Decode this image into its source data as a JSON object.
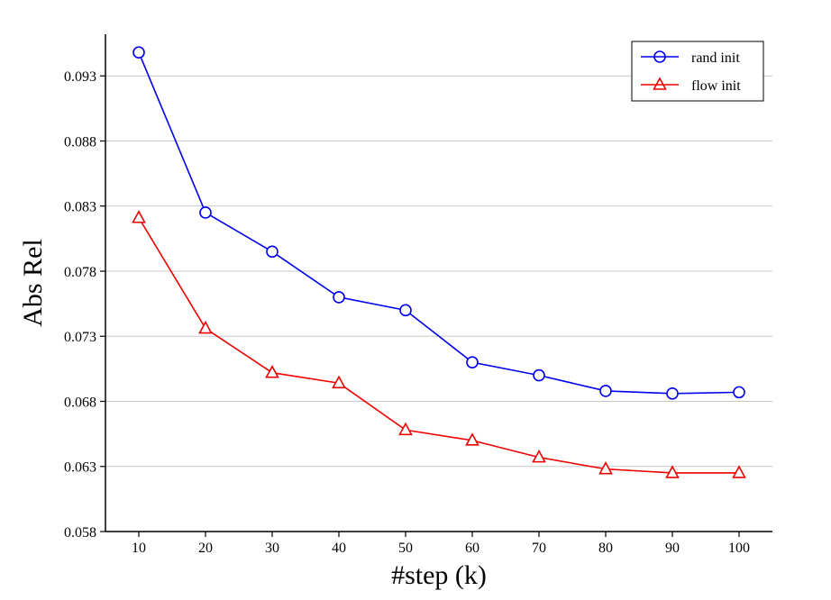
{
  "chart_data": {
    "type": "line",
    "title": "",
    "xlabel": "#step (k)",
    "ylabel": "Abs Rel",
    "x": [
      10,
      20,
      30,
      40,
      50,
      60,
      70,
      80,
      90,
      100
    ],
    "x_tick_labels": [
      "10",
      "20",
      "30",
      "40",
      "50",
      "60",
      "70",
      "80",
      "90",
      "100"
    ],
    "xlim": [
      5,
      105
    ],
    "ylim": [
      0.058,
      0.0962
    ],
    "y_ticks": [
      0.058,
      0.063,
      0.068,
      0.073,
      0.078,
      0.083,
      0.088,
      0.093
    ],
    "y_tick_labels": [
      "0.058",
      "0.063",
      "0.068",
      "0.073",
      "0.078",
      "0.083",
      "0.088",
      "0.093"
    ],
    "grid": "horizontal",
    "legend_position": "top-right",
    "series": [
      {
        "name": "rand init",
        "color": "#0000ee",
        "marker": "circle",
        "values": [
          0.0948,
          0.0825,
          0.0795,
          0.076,
          0.075,
          0.071,
          0.07,
          0.0688,
          0.0686,
          0.0687
        ]
      },
      {
        "name": "flow init",
        "color": "#ee0000",
        "marker": "triangle",
        "values": [
          0.0821,
          0.0736,
          0.0702,
          0.0694,
          0.0658,
          0.065,
          0.0637,
          0.0628,
          0.0625,
          0.0625
        ]
      }
    ]
  }
}
